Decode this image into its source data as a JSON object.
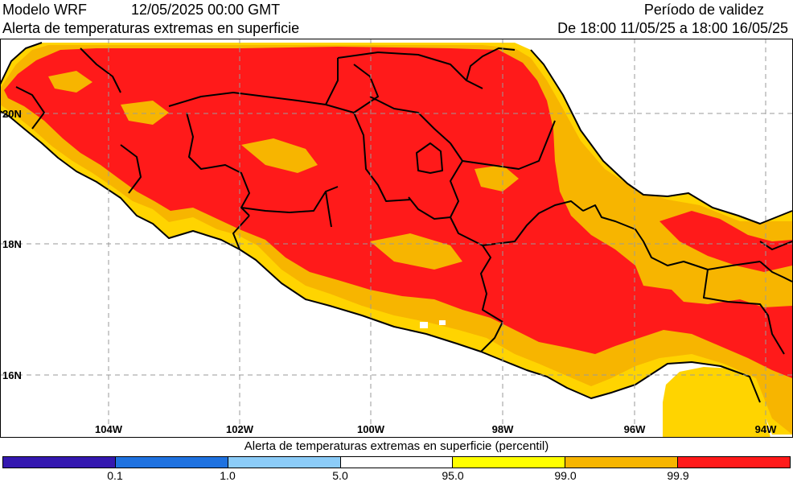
{
  "header": {
    "model": "Modelo WRF",
    "run_time": "12/05/2025 00:00 GMT",
    "subtitle": "Alerta de temperaturas extremas en superficie",
    "validity_label": "Período de validez",
    "validity_range": "De 18:00 11/05/25 a 18:00 16/05/25"
  },
  "map": {
    "lat_labels": [
      "20N",
      "18N",
      "16N"
    ],
    "lon_labels": [
      "104W",
      "102W",
      "100W",
      "98W",
      "96W",
      "94W"
    ],
    "colors": {
      "land_base": "#ffd400",
      "orange": "#f7b500",
      "red": "#ff1a1a",
      "ocean": "#ffffff",
      "grid": "#9a9a9a",
      "border": "#000000"
    }
  },
  "colorbar": {
    "title": "Alerta de temperaturas extremas en superficie (percentil)",
    "colors": [
      "#3418b0",
      "#1f72e0",
      "#8cccf8",
      "#ffffff",
      "#ffff00",
      "#f7b500",
      "#ff1a1a"
    ],
    "tick_labels": [
      "0.1",
      "1.0",
      "5.0",
      "95.0",
      "99.0",
      "99.9"
    ]
  }
}
